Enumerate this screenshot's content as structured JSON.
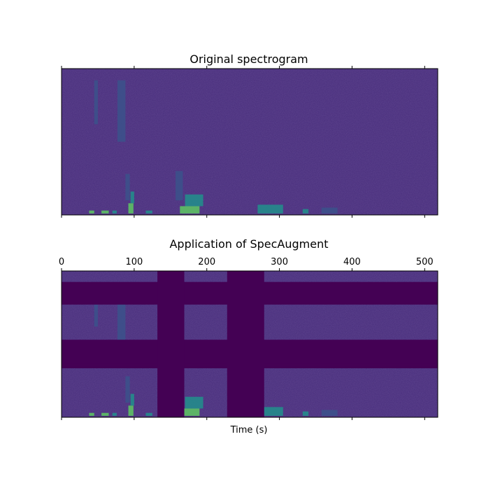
{
  "chart_data": [
    {
      "type": "heatmap",
      "title": "Original spectrogram",
      "xlim": [
        0,
        518
      ],
      "xticks": [
        0,
        100,
        200,
        300,
        400,
        500
      ],
      "xtick_labels_visible": false,
      "yticks_visible": false,
      "colormap": "viridis",
      "background_color": "#472d7b",
      "masked_time_ranges": [],
      "masked_freq_ranges": []
    },
    {
      "type": "heatmap",
      "title": "Application of SpecAugment",
      "xlabel": "Time (s)",
      "xlim": [
        0,
        518
      ],
      "xticks": [
        0,
        100,
        200,
        300,
        400,
        500
      ],
      "xtick_labels": [
        "0",
        "100",
        "200",
        "300",
        "400",
        "500"
      ],
      "xtick_labels_position": "top",
      "yticks_visible": false,
      "colormap": "viridis",
      "background_color": "#472d7b",
      "mask_color": "#440154",
      "masked_time_ranges": [
        [
          132,
          169
        ],
        [
          228,
          279
        ]
      ],
      "masked_freq_fraction_ranges": [
        [
          0.075,
          0.23
        ],
        [
          0.47,
          0.665
        ],
        [
          0.635,
          0.655
        ]
      ]
    }
  ],
  "colors": {
    "mask": "#440154",
    "background": "#472d7b",
    "energy_low": "#3b528b",
    "energy_mid": "#21918c",
    "energy_high": "#5ec962",
    "energy_peak": "#fde725"
  }
}
